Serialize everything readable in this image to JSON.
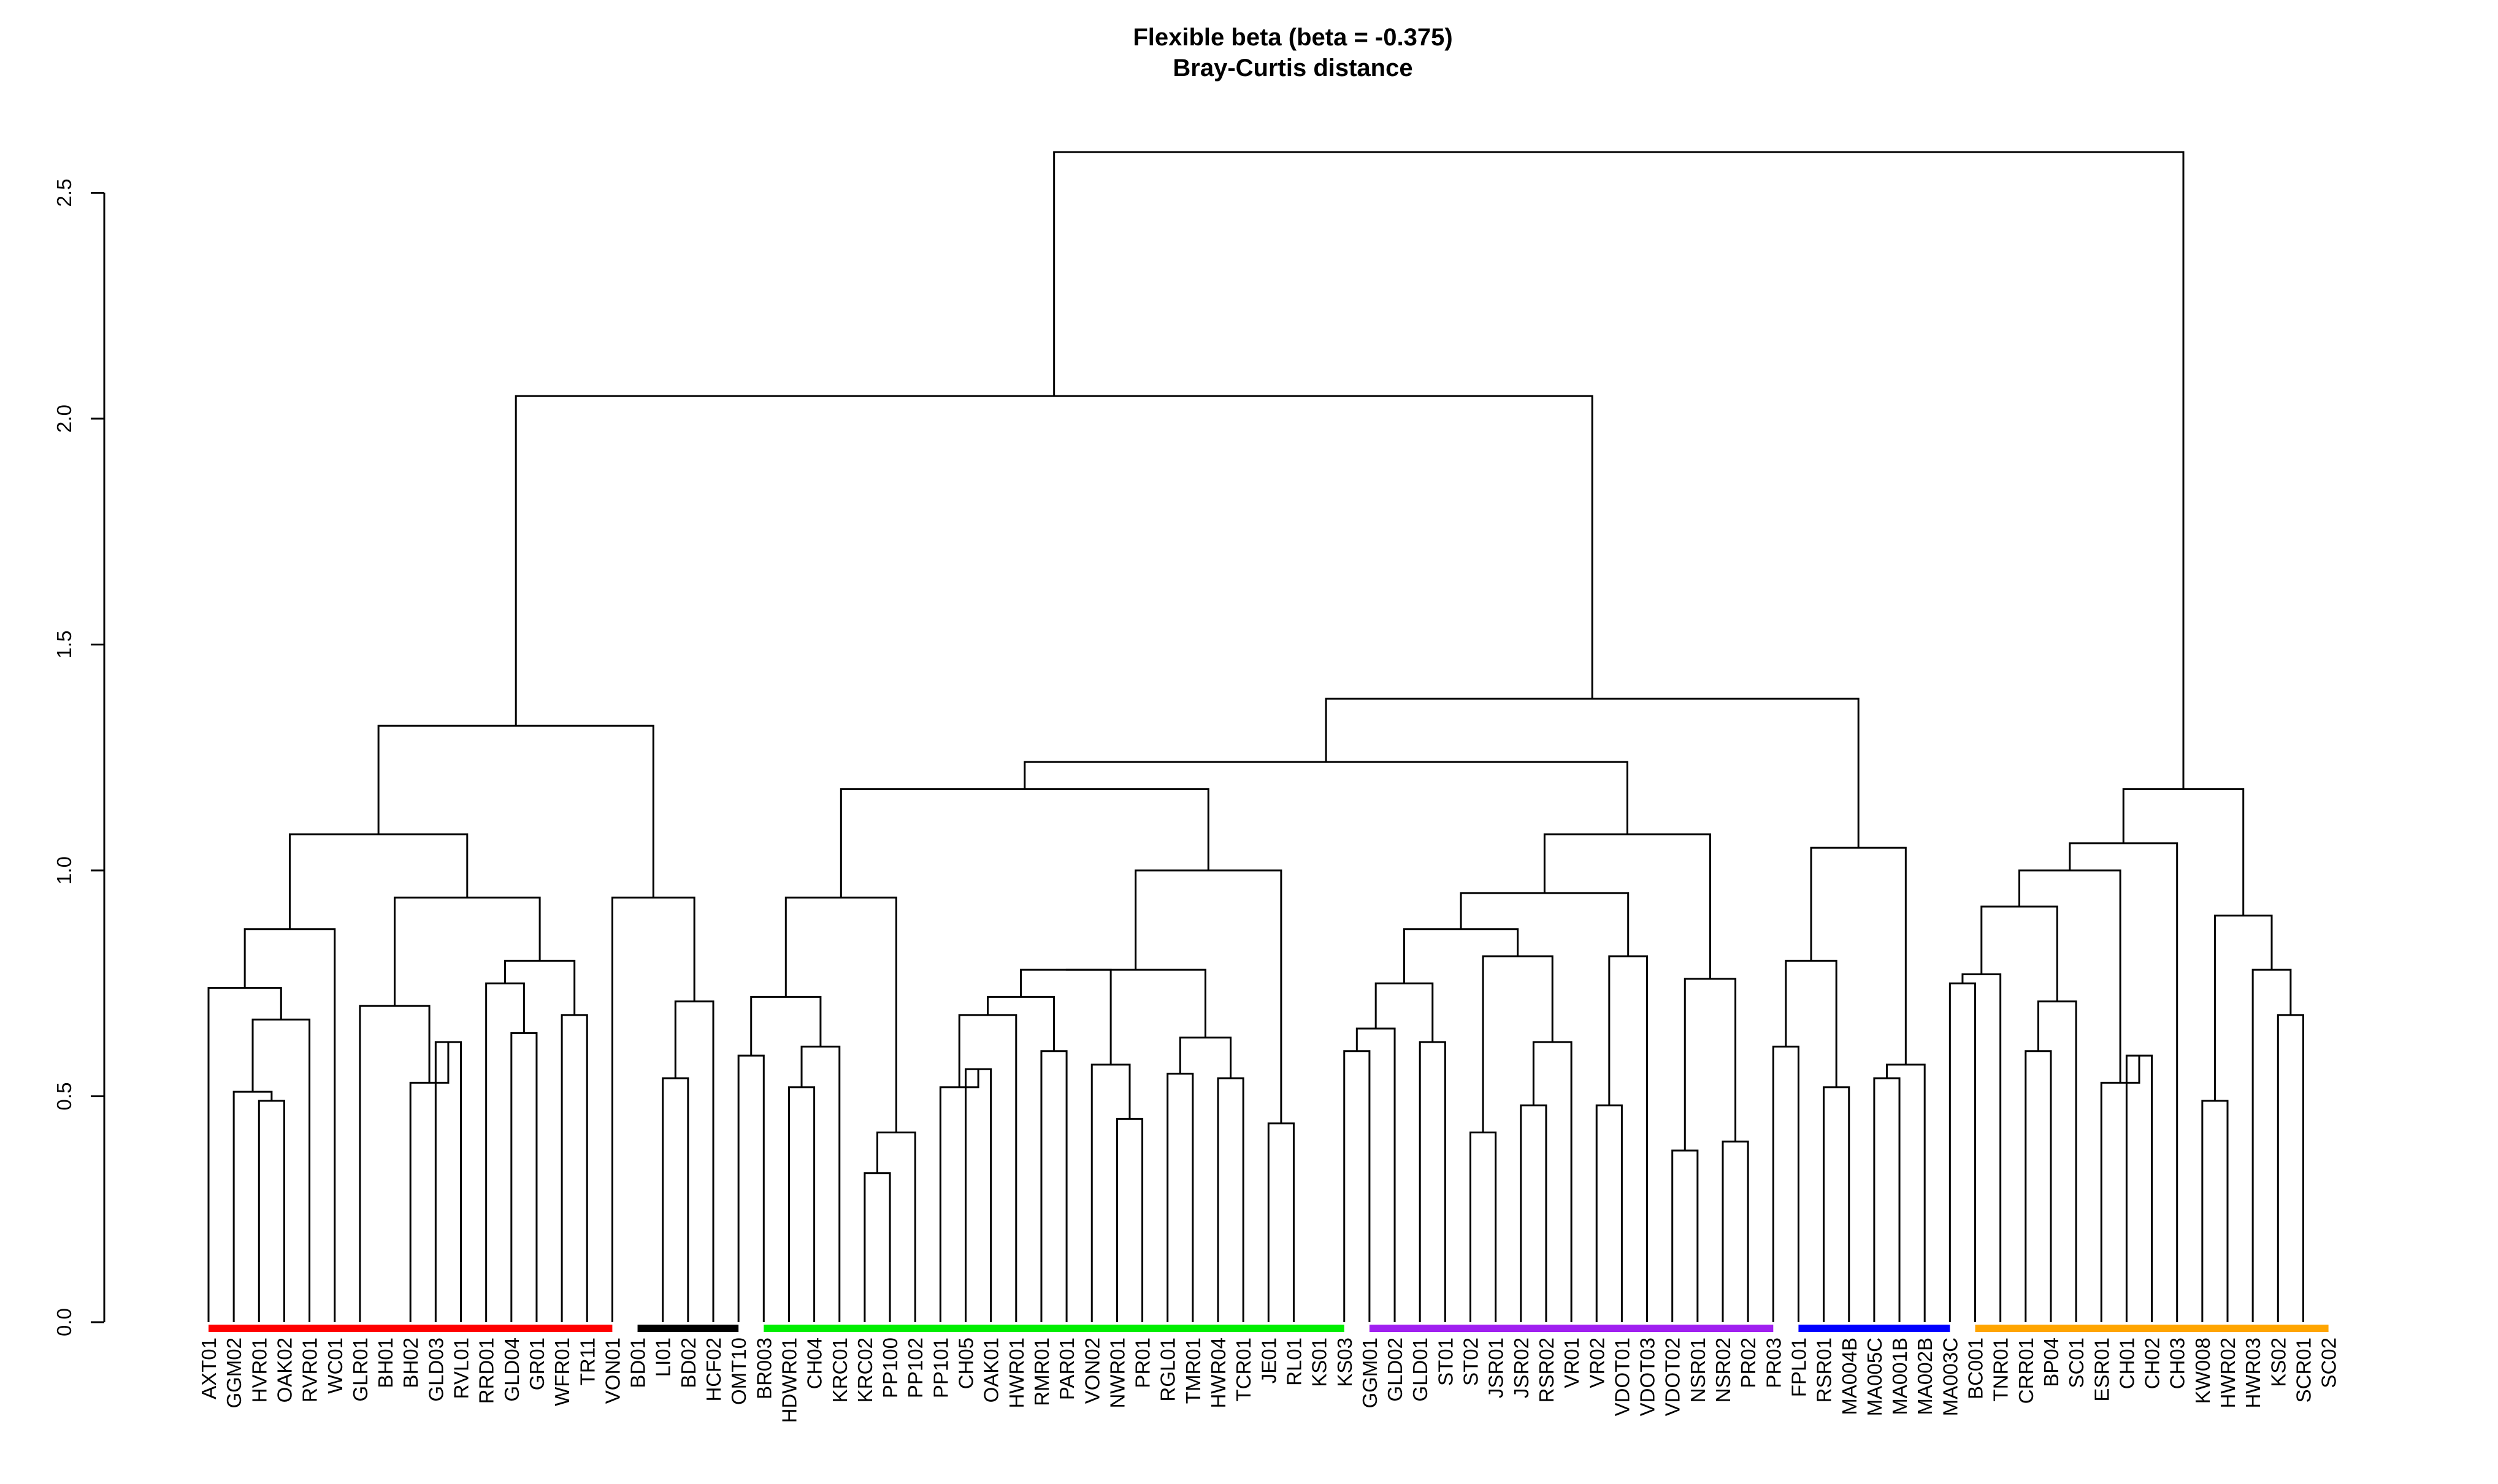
{
  "chart_data": {
    "type": "dendrogram",
    "title": "Flexible beta (beta = -0.375)",
    "subtitle": "Bray-Curtis distance",
    "xlabel": "",
    "ylabel": "",
    "ylim": [
      0,
      2.6
    ],
    "y_ticks": [
      "0.0",
      "0.5",
      "1.0",
      "1.5",
      "2.0",
      "2.5"
    ],
    "grid": false,
    "leaves": [
      "AXT01",
      "GGM02",
      "HVR01",
      "OAK02",
      "RVR01",
      "WC01",
      "GLR01",
      "BH01",
      "BH02",
      "GLD03",
      "RVL01",
      "RRD01",
      "GLD04",
      "GR01",
      "WFR01",
      "TR11",
      "VON01",
      "BD01",
      "LI01",
      "BD02",
      "HCF02",
      "OMT10",
      "BR003",
      "HDWR01",
      "CH04",
      "KRC01",
      "KRC02",
      "PP100",
      "PP102",
      "PP101",
      "CH05",
      "OAK01",
      "HWR01",
      "RMR01",
      "PAR01",
      "VON02",
      "NWR01",
      "PR01",
      "RGL01",
      "TMR01",
      "HWR04",
      "TCR01",
      "JE01",
      "RL01",
      "KS01",
      "KS03",
      "GGM01",
      "GLD02",
      "GLD01",
      "ST01",
      "ST02",
      "JSR01",
      "JSR02",
      "RSR02",
      "VR01",
      "VR02",
      "VDOT01",
      "VDOT03",
      "VDOT02",
      "NSR01",
      "NSR02",
      "PR02",
      "PR03",
      "FPL01",
      "RSR01",
      "MA004B",
      "MA005C",
      "MA001B",
      "MA002B",
      "MA003C",
      "BC001",
      "TNR01",
      "CRR01",
      "BP04",
      "SC01",
      "ESR01",
      "CH01",
      "CH02",
      "CH03",
      "KW008",
      "HWR02",
      "HWR03",
      "KS02",
      "SCR01",
      "SC02"
    ],
    "merges": [
      [
        [
          1,
          "AXT01"
        ],
        [
          1,
          "GGM02"
        ],
        0.58
      ],
      [
        [
          3,
          "OAK02"
        ],
        [
          4,
          "RVR01"
        ],
        0.49
      ],
      [
        [
          2,
          "HVR01"
        ],
        [
          3,
          "OAK02"
        ],
        0.51
      ],
      [
        [
          2,
          "HVR01"
        ],
        [
          5,
          "WC01"
        ],
        0.67
      ],
      [
        [
          1,
          "AXT01"
        ],
        [
          2,
          "HVR01"
        ],
        0.74
      ],
      [
        [
          1,
          "AXT01"
        ],
        [
          6,
          "GLR01"
        ],
        0.87
      ],
      [
        [
          10,
          "RVL01"
        ],
        [
          11,
          "RRD01"
        ],
        0.62
      ],
      [
        [
          9,
          "GLD03"
        ],
        [
          10,
          "RVL01"
        ],
        0.53
      ],
      [
        [
          7,
          "BH01"
        ],
        [
          9,
          "GLD03"
        ],
        0.7
      ],
      [
        [
          13,
          "GR01"
        ],
        [
          14,
          "WFR01"
        ],
        0.64
      ],
      [
        [
          12,
          "GLD04"
        ],
        [
          13,
          "GR01"
        ],
        0.75
      ],
      [
        [
          15,
          "TR11"
        ],
        [
          16,
          "VON01"
        ],
        0.68
      ],
      [
        [
          12,
          "GLD04"
        ],
        [
          15,
          "TR11"
        ],
        0.8
      ],
      [
        [
          7,
          "BH01"
        ],
        [
          12,
          "GLD04"
        ],
        0.94
      ],
      [
        [
          1,
          "AXT01"
        ],
        [
          7,
          "BH01"
        ],
        1.08
      ],
      [
        [
          19,
          "BD02"
        ],
        [
          20,
          "HCF02"
        ],
        0.54
      ],
      [
        [
          19,
          "BD02"
        ],
        [
          21,
          "OMT10"
        ],
        0.71
      ],
      [
        [
          17,
          "BD01"
        ],
        [
          19,
          "BD02"
        ],
        0.94
      ],
      [
        [
          1,
          "AXT01"
        ],
        [
          17,
          "BD01"
        ],
        1.32
      ],
      [
        [
          22,
          "BR003"
        ],
        [
          23,
          "HDWR01"
        ],
        0.59
      ],
      [
        [
          24,
          "CH04"
        ],
        [
          25,
          "KRC01"
        ],
        0.52
      ],
      [
        [
          24,
          "CH04"
        ],
        [
          26,
          "KRC02"
        ],
        0.61
      ],
      [
        [
          22,
          "BR003"
        ],
        [
          24,
          "CH04"
        ],
        0.72
      ],
      [
        [
          27,
          "PP100"
        ],
        [
          28,
          "PP102"
        ],
        0.33
      ],
      [
        [
          27,
          "PP100"
        ],
        [
          29,
          "PP101"
        ],
        0.42
      ],
      [
        [
          22,
          "BR003"
        ],
        [
          27,
          "PP100"
        ],
        0.94
      ],
      [
        [
          31,
          "OAK01"
        ],
        [
          32,
          "HWR01"
        ],
        0.56
      ],
      [
        [
          30,
          "CH05"
        ],
        [
          31,
          "OAK01"
        ],
        0.52
      ],
      [
        [
          30,
          "CH05"
        ],
        [
          33,
          "RMR01"
        ],
        0.68
      ],
      [
        [
          34,
          "PAR01"
        ],
        [
          35,
          "VON02"
        ],
        0.6
      ],
      [
        [
          30,
          "CH05"
        ],
        [
          34,
          "PAR01"
        ],
        0.72
      ],
      [
        [
          37,
          "PR01"
        ],
        [
          38,
          "RGL01"
        ],
        0.45
      ],
      [
        [
          36,
          "NWR01"
        ],
        [
          37,
          "PR01"
        ],
        0.57
      ],
      [
        [
          30,
          "CH05"
        ],
        [
          36,
          "NWR01"
        ],
        0.78
      ],
      [
        [
          39,
          "TMR01"
        ],
        [
          40,
          "HWR04"
        ],
        0.55
      ],
      [
        [
          41,
          "TCR01"
        ],
        [
          42,
          "JE01"
        ],
        0.54
      ],
      [
        [
          39,
          "TMR01"
        ],
        [
          41,
          "TCR01"
        ],
        0.63
      ],
      [
        [
          30,
          "CH05"
        ],
        [
          39,
          "TMR01"
        ],
        0.78
      ],
      [
        [
          43,
          "RL01"
        ],
        [
          44,
          "KS01"
        ],
        0.44
      ],
      [
        [
          30,
          "CH05"
        ],
        [
          43,
          "RL01"
        ],
        1.0
      ],
      [
        [
          22,
          "BR003"
        ],
        [
          30,
          "CH05"
        ],
        1.18
      ],
      [
        [
          46,
          "GGM01"
        ],
        [
          47,
          "GLD02"
        ],
        0.6
      ],
      [
        [
          46,
          "GGM01"
        ],
        [
          48,
          "GLD01"
        ],
        0.65
      ],
      [
        [
          49,
          "ST01"
        ],
        [
          50,
          "ST02"
        ],
        0.62
      ],
      [
        [
          46,
          "GGM01"
        ],
        [
          49,
          "ST01"
        ],
        0.75
      ],
      [
        [
          51,
          "JSR01"
        ],
        [
          52,
          "JSR02"
        ],
        0.42
      ],
      [
        [
          53,
          "RSR02"
        ],
        [
          54,
          "VR01"
        ],
        0.48
      ],
      [
        [
          53,
          "RSR02"
        ],
        [
          55,
          "VR02"
        ],
        0.62
      ],
      [
        [
          51,
          "JSR01"
        ],
        [
          53,
          "RSR02"
        ],
        0.81
      ],
      [
        [
          46,
          "GGM01"
        ],
        [
          51,
          "JSR01"
        ],
        0.87
      ],
      [
        [
          56,
          "VDOT01"
        ],
        [
          57,
          "VDOT03"
        ],
        0.48
      ],
      [
        [
          56,
          "VDOT01"
        ],
        [
          58,
          "VDOT02"
        ],
        0.81
      ],
      [
        [
          46,
          "GGM01"
        ],
        [
          56,
          "VDOT01"
        ],
        0.95
      ],
      [
        [
          59,
          "NSR01"
        ],
        [
          60,
          "NSR02"
        ],
        0.38
      ],
      [
        [
          61,
          "PR02"
        ],
        [
          62,
          "PR03"
        ],
        0.4
      ],
      [
        [
          59,
          "NSR01"
        ],
        [
          61,
          "PR02"
        ],
        0.76
      ],
      [
        [
          46,
          "GGM01"
        ],
        [
          59,
          "NSR01"
        ],
        1.08
      ],
      [
        [
          22,
          "BR003"
        ],
        [
          46,
          "GGM01"
        ],
        1.24
      ],
      [
        [
          63,
          "FPL01"
        ],
        [
          64,
          "RSR01"
        ],
        0.61
      ],
      [
        [
          65,
          "MA004B"
        ],
        [
          66,
          "MA005C"
        ],
        0.52
      ],
      [
        [
          63,
          "FPL01"
        ],
        [
          65,
          "MA004B"
        ],
        0.8
      ],
      [
        [
          67,
          "MA001B"
        ],
        [
          68,
          "MA002B"
        ],
        0.54
      ],
      [
        [
          67,
          "MA001B"
        ],
        [
          69,
          "MA003C"
        ],
        0.57
      ],
      [
        [
          63,
          "FPL01"
        ],
        [
          67,
          "MA001B"
        ],
        1.05
      ],
      [
        [
          22,
          "BR003"
        ],
        [
          63,
          "FPL01"
        ],
        1.38
      ],
      [
        [
          70,
          "BC001"
        ],
        [
          71,
          "TNR01"
        ],
        0.75
      ],
      [
        [
          70,
          "BC001"
        ],
        [
          72,
          "CRR01"
        ],
        0.77
      ],
      [
        [
          73,
          "BP04"
        ],
        [
          74,
          "SC01"
        ],
        0.6
      ],
      [
        [
          73,
          "BP04"
        ],
        [
          75,
          "ESR01"
        ],
        0.71
      ],
      [
        [
          70,
          "BC001"
        ],
        [
          73,
          "BP04"
        ],
        0.92
      ],
      [
        [
          77,
          "CH02"
        ],
        [
          78,
          "CH03"
        ],
        0.59
      ],
      [
        [
          76,
          "CH01"
        ],
        [
          77,
          "CH02"
        ],
        0.53
      ],
      [
        [
          70,
          "BC001"
        ],
        [
          76,
          "CH01"
        ],
        1.0
      ],
      [
        [
          70,
          "BC001"
        ],
        [
          79,
          "KW008"
        ],
        1.06
      ],
      [
        [
          80,
          "HWR02"
        ],
        [
          81,
          "HWR03"
        ],
        0.49
      ],
      [
        [
          83,
          "SCR01"
        ],
        [
          84,
          "SC02"
        ],
        0.68
      ],
      [
        [
          82,
          "KS02"
        ],
        [
          83,
          "SCR01"
        ],
        0.78
      ],
      [
        [
          80,
          "HWR02"
        ],
        [
          82,
          "KS02"
        ],
        0.9
      ],
      [
        [
          70,
          "BC001"
        ],
        [
          80,
          "HWR02"
        ],
        1.18
      ],
      [
        [
          1,
          "AXT01"
        ],
        [
          22,
          "BR003"
        ],
        2.05
      ],
      [
        [
          1,
          "AXT01"
        ],
        [
          70,
          "BC001"
        ],
        2.59
      ]
    ],
    "cluster_bars": [
      {
        "from": "AXT01",
        "to": "VON01",
        "color": "#ff0000"
      },
      {
        "from": "BD01",
        "to": "OMT10",
        "color": "#000000"
      },
      {
        "from": "BR003",
        "to": "KS03",
        "color": "#00ee00"
      },
      {
        "from": "GGM01",
        "to": "PR03",
        "color": "#a020f0"
      },
      {
        "from": "FPL01",
        "to": "MA003C",
        "color": "#0000ff"
      },
      {
        "from": "BC001",
        "to": "SC02",
        "color": "#ffa500"
      }
    ]
  }
}
